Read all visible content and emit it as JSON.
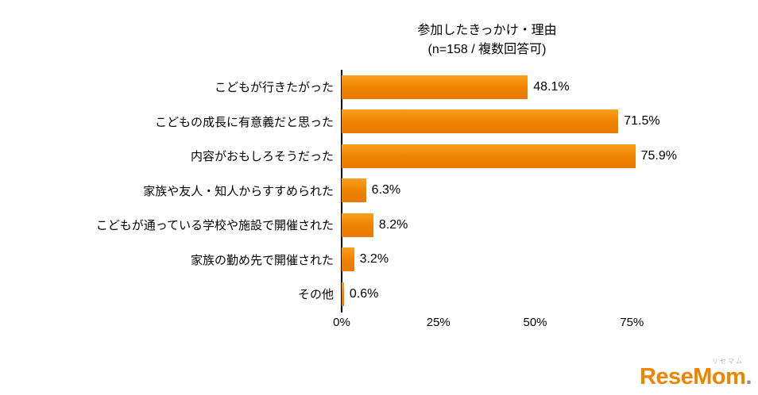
{
  "chart_data": {
    "type": "bar",
    "orientation": "horizontal",
    "title": "参加したきっかけ・理由",
    "subtitle": "(n=158 / 複数回答可)",
    "n": 158,
    "categories": [
      "こどもが行きたがった",
      "こどもの成長に有意義だと思った",
      "内容がおもしろそうだった",
      "家族や友人・知人からすすめられた",
      "こどもが通っている学校や施設で開催された",
      "家族の勤め先で開催された",
      "その他"
    ],
    "values": [
      48.1,
      71.5,
      75.9,
      6.3,
      8.2,
      3.2,
      0.6
    ],
    "value_labels": [
      "48.1%",
      "71.5%",
      "75.9%",
      "6.3%",
      "8.2%",
      "3.2%",
      "0.6%"
    ],
    "x_ticks": [
      "0%",
      "25%",
      "50%",
      "75%"
    ],
    "x_tick_values": [
      0,
      25,
      50,
      75
    ],
    "xlim": [
      0,
      100
    ],
    "bar_color": "#F08300",
    "grid": false,
    "legend": false
  },
  "logo": {
    "ruby": "リセマム",
    "text": "ReseMom",
    "suffix": "."
  }
}
